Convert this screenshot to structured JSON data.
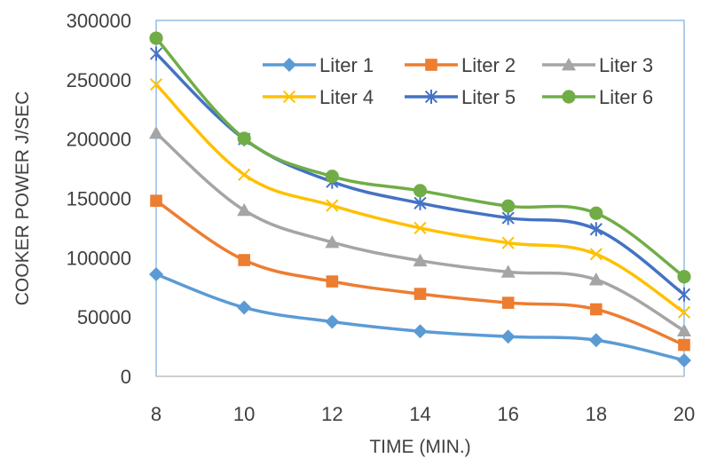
{
  "chart_data": {
    "type": "line",
    "xlabel": "TIME (MIN.)",
    "ylabel": "COOKER POWER J/SEC",
    "x": [
      8,
      10,
      12,
      14,
      16,
      18,
      20
    ],
    "xlim": [
      8,
      20
    ],
    "ylim": [
      0,
      300000
    ],
    "yticks": [
      0,
      50000,
      100000,
      150000,
      200000,
      250000,
      300000
    ],
    "ytick_labels": [
      "0",
      "50000",
      "100000",
      "150000",
      "200000",
      "250000",
      "300000"
    ],
    "xtick_labels": [
      "8",
      "10",
      "12",
      "14",
      "16",
      "18",
      "20"
    ],
    "grid": false,
    "legend_position": "top-right",
    "series": [
      {
        "name": "Liter 1",
        "color": "#5B9BD5",
        "marker": "diamond",
        "values": [
          86000,
          58000,
          46000,
          38000,
          33500,
          30500,
          13500
        ]
      },
      {
        "name": "Liter 2",
        "color": "#ED7D31",
        "marker": "square",
        "values": [
          148000,
          98000,
          80000,
          69500,
          62000,
          56500,
          26500
        ]
      },
      {
        "name": "Liter 3",
        "color": "#A5A5A5",
        "marker": "triangle",
        "values": [
          205000,
          140000,
          113000,
          97500,
          88000,
          81500,
          38500
        ]
      },
      {
        "name": "Liter 4",
        "color": "#FFC000",
        "marker": "x",
        "values": [
          246000,
          170000,
          144000,
          125000,
          112500,
          103000,
          54000
        ]
      },
      {
        "name": "Liter 5",
        "color": "#4472C4",
        "marker": "star",
        "values": [
          272000,
          200000,
          164000,
          146000,
          133500,
          124000,
          69000
        ]
      },
      {
        "name": "Liter 6",
        "color": "#70AD47",
        "marker": "circle",
        "values": [
          285000,
          200500,
          168500,
          156500,
          143500,
          137500,
          84000
        ]
      }
    ]
  }
}
